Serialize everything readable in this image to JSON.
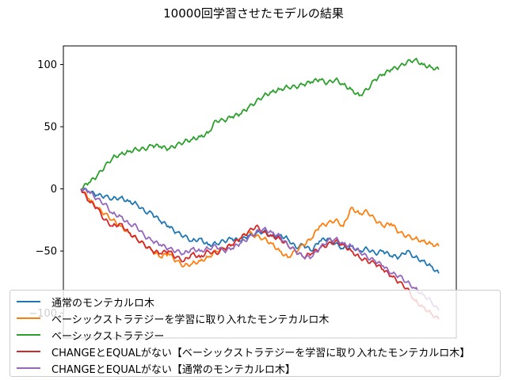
{
  "chart_data": {
    "type": "line",
    "title": "10000回学習させたモデルの結果",
    "xlabel": "",
    "ylabel": "",
    "xlim": [
      -22,
      472
    ],
    "ylim": [
      -120,
      115
    ],
    "yticks": [
      -100,
      -50,
      0,
      50,
      100
    ],
    "ytick_labels": [
      "−100",
      "−50",
      "0",
      "50",
      "100"
    ],
    "grid": false,
    "legend_position": "lower-center",
    "series": [
      {
        "name": "通常のモンテカルロ木",
        "color": "#1f77b4",
        "points": [
          [
            0,
            0
          ],
          [
            10,
            -2
          ],
          [
            20,
            -5
          ],
          [
            30,
            -6
          ],
          [
            40,
            -8
          ],
          [
            50,
            -7
          ],
          [
            60,
            -10
          ],
          [
            70,
            -12
          ],
          [
            80,
            -18
          ],
          [
            90,
            -20
          ],
          [
            100,
            -26
          ],
          [
            110,
            -30
          ],
          [
            120,
            -35
          ],
          [
            130,
            -38
          ],
          [
            140,
            -42
          ],
          [
            150,
            -40
          ],
          [
            160,
            -45
          ],
          [
            170,
            -44
          ],
          [
            180,
            -42
          ],
          [
            190,
            -40
          ],
          [
            200,
            -42
          ],
          [
            210,
            -38
          ],
          [
            220,
            -36
          ],
          [
            230,
            -34
          ],
          [
            240,
            -38
          ],
          [
            250,
            -37
          ],
          [
            260,
            -40
          ],
          [
            270,
            -47
          ],
          [
            280,
            -45
          ],
          [
            290,
            -50
          ],
          [
            300,
            -42
          ],
          [
            310,
            -40
          ],
          [
            320,
            -44
          ],
          [
            330,
            -48
          ],
          [
            340,
            -46
          ],
          [
            350,
            -50
          ],
          [
            360,
            -48
          ],
          [
            370,
            -52
          ],
          [
            380,
            -50
          ],
          [
            390,
            -54
          ],
          [
            400,
            -55
          ],
          [
            410,
            -50
          ],
          [
            420,
            -55
          ],
          [
            430,
            -58
          ],
          [
            440,
            -62
          ],
          [
            450,
            -68
          ]
        ]
      },
      {
        "name": "ベーシックストラテジーを学習に取り入れたモンテカルロ木",
        "color": "#ff7f0e",
        "points": [
          [
            0,
            0
          ],
          [
            10,
            -8
          ],
          [
            20,
            -15
          ],
          [
            30,
            -20
          ],
          [
            40,
            -25
          ],
          [
            50,
            -30
          ],
          [
            60,
            -35
          ],
          [
            70,
            -40
          ],
          [
            80,
            -45
          ],
          [
            90,
            -50
          ],
          [
            100,
            -55
          ],
          [
            110,
            -52
          ],
          [
            120,
            -58
          ],
          [
            130,
            -62
          ],
          [
            140,
            -60
          ],
          [
            150,
            -58
          ],
          [
            160,
            -55
          ],
          [
            170,
            -50
          ],
          [
            180,
            -48
          ],
          [
            190,
            -45
          ],
          [
            200,
            -40
          ],
          [
            210,
            -35
          ],
          [
            220,
            -38
          ],
          [
            230,
            -40
          ],
          [
            240,
            -44
          ],
          [
            250,
            -50
          ],
          [
            260,
            -55
          ],
          [
            270,
            -50
          ],
          [
            280,
            -45
          ],
          [
            290,
            -40
          ],
          [
            300,
            -30
          ],
          [
            310,
            -28
          ],
          [
            320,
            -25
          ],
          [
            330,
            -30
          ],
          [
            340,
            -15
          ],
          [
            350,
            -20
          ],
          [
            360,
            -18
          ],
          [
            370,
            -25
          ],
          [
            380,
            -30
          ],
          [
            390,
            -28
          ],
          [
            400,
            -35
          ],
          [
            410,
            -38
          ],
          [
            420,
            -40
          ],
          [
            430,
            -42
          ],
          [
            440,
            -44
          ],
          [
            450,
            -46
          ]
        ]
      },
      {
        "name": "ベーシックストラテジー",
        "color": "#2ca02c",
        "points": [
          [
            0,
            0
          ],
          [
            10,
            5
          ],
          [
            20,
            10
          ],
          [
            30,
            18
          ],
          [
            40,
            25
          ],
          [
            50,
            28
          ],
          [
            60,
            30
          ],
          [
            70,
            32
          ],
          [
            80,
            32
          ],
          [
            90,
            35
          ],
          [
            100,
            34
          ],
          [
            110,
            32
          ],
          [
            120,
            35
          ],
          [
            130,
            38
          ],
          [
            140,
            40
          ],
          [
            150,
            42
          ],
          [
            160,
            45
          ],
          [
            170,
            55
          ],
          [
            180,
            55
          ],
          [
            190,
            58
          ],
          [
            200,
            60
          ],
          [
            210,
            65
          ],
          [
            220,
            70
          ],
          [
            230,
            75
          ],
          [
            240,
            78
          ],
          [
            250,
            80
          ],
          [
            260,
            82
          ],
          [
            270,
            82
          ],
          [
            280,
            84
          ],
          [
            290,
            86
          ],
          [
            300,
            88
          ],
          [
            310,
            85
          ],
          [
            320,
            88
          ],
          [
            330,
            84
          ],
          [
            340,
            80
          ],
          [
            350,
            75
          ],
          [
            360,
            80
          ],
          [
            370,
            88
          ],
          [
            380,
            92
          ],
          [
            390,
            96
          ],
          [
            400,
            98
          ],
          [
            410,
            102
          ],
          [
            420,
            104
          ],
          [
            430,
            100
          ],
          [
            440,
            98
          ],
          [
            450,
            96
          ]
        ]
      },
      {
        "name": "CHANGEとEQUALがない【ベーシックストラテジーを学習に取り入れたモンテカルロ木】",
        "color": "#d62728",
        "points": [
          [
            0,
            0
          ],
          [
            10,
            -10
          ],
          [
            20,
            -15
          ],
          [
            30,
            -25
          ],
          [
            40,
            -30
          ],
          [
            50,
            -28
          ],
          [
            60,
            -35
          ],
          [
            70,
            -40
          ],
          [
            80,
            -45
          ],
          [
            90,
            -50
          ],
          [
            100,
            -52
          ],
          [
            110,
            -50
          ],
          [
            120,
            -55
          ],
          [
            130,
            -58
          ],
          [
            140,
            -52
          ],
          [
            150,
            -55
          ],
          [
            160,
            -50
          ],
          [
            170,
            -52
          ],
          [
            180,
            -48
          ],
          [
            190,
            -45
          ],
          [
            200,
            -40
          ],
          [
            210,
            -35
          ],
          [
            220,
            -30
          ],
          [
            230,
            -35
          ],
          [
            240,
            -38
          ],
          [
            250,
            -40
          ],
          [
            260,
            -45
          ],
          [
            270,
            -50
          ],
          [
            280,
            -55
          ],
          [
            290,
            -52
          ],
          [
            300,
            -48
          ],
          [
            310,
            -45
          ],
          [
            320,
            -42
          ],
          [
            330,
            -45
          ],
          [
            340,
            -50
          ],
          [
            350,
            -55
          ],
          [
            360,
            -58
          ],
          [
            370,
            -60
          ],
          [
            380,
            -65
          ],
          [
            390,
            -70
          ],
          [
            400,
            -75
          ],
          [
            410,
            -80
          ],
          [
            420,
            -90
          ],
          [
            430,
            -95
          ],
          [
            440,
            -100
          ],
          [
            450,
            -105
          ]
        ]
      },
      {
        "name": "CHANGEとEQUALがない【通常のモンテカルロ木】",
        "color": "#9467bd",
        "points": [
          [
            0,
            0
          ],
          [
            10,
            -2
          ],
          [
            20,
            -8
          ],
          [
            30,
            -12
          ],
          [
            40,
            -20
          ],
          [
            50,
            -22
          ],
          [
            60,
            -28
          ],
          [
            70,
            -30
          ],
          [
            80,
            -38
          ],
          [
            90,
            -42
          ],
          [
            100,
            -45
          ],
          [
            110,
            -48
          ],
          [
            120,
            -50
          ],
          [
            130,
            -52
          ],
          [
            140,
            -48
          ],
          [
            150,
            -50
          ],
          [
            160,
            -48
          ],
          [
            170,
            -46
          ],
          [
            180,
            -50
          ],
          [
            190,
            -48
          ],
          [
            200,
            -44
          ],
          [
            210,
            -40
          ],
          [
            220,
            -35
          ],
          [
            230,
            -32
          ],
          [
            240,
            -35
          ],
          [
            250,
            -38
          ],
          [
            260,
            -45
          ],
          [
            270,
            -50
          ],
          [
            280,
            -55
          ],
          [
            290,
            -55
          ],
          [
            300,
            -48
          ],
          [
            310,
            -42
          ],
          [
            320,
            -40
          ],
          [
            330,
            -44
          ],
          [
            340,
            -46
          ],
          [
            350,
            -50
          ],
          [
            360,
            -55
          ],
          [
            370,
            -58
          ],
          [
            380,
            -62
          ],
          [
            390,
            -68
          ],
          [
            400,
            -70
          ],
          [
            410,
            -75
          ],
          [
            420,
            -80
          ],
          [
            430,
            -85
          ],
          [
            440,
            -90
          ],
          [
            450,
            -98
          ]
        ]
      }
    ]
  }
}
